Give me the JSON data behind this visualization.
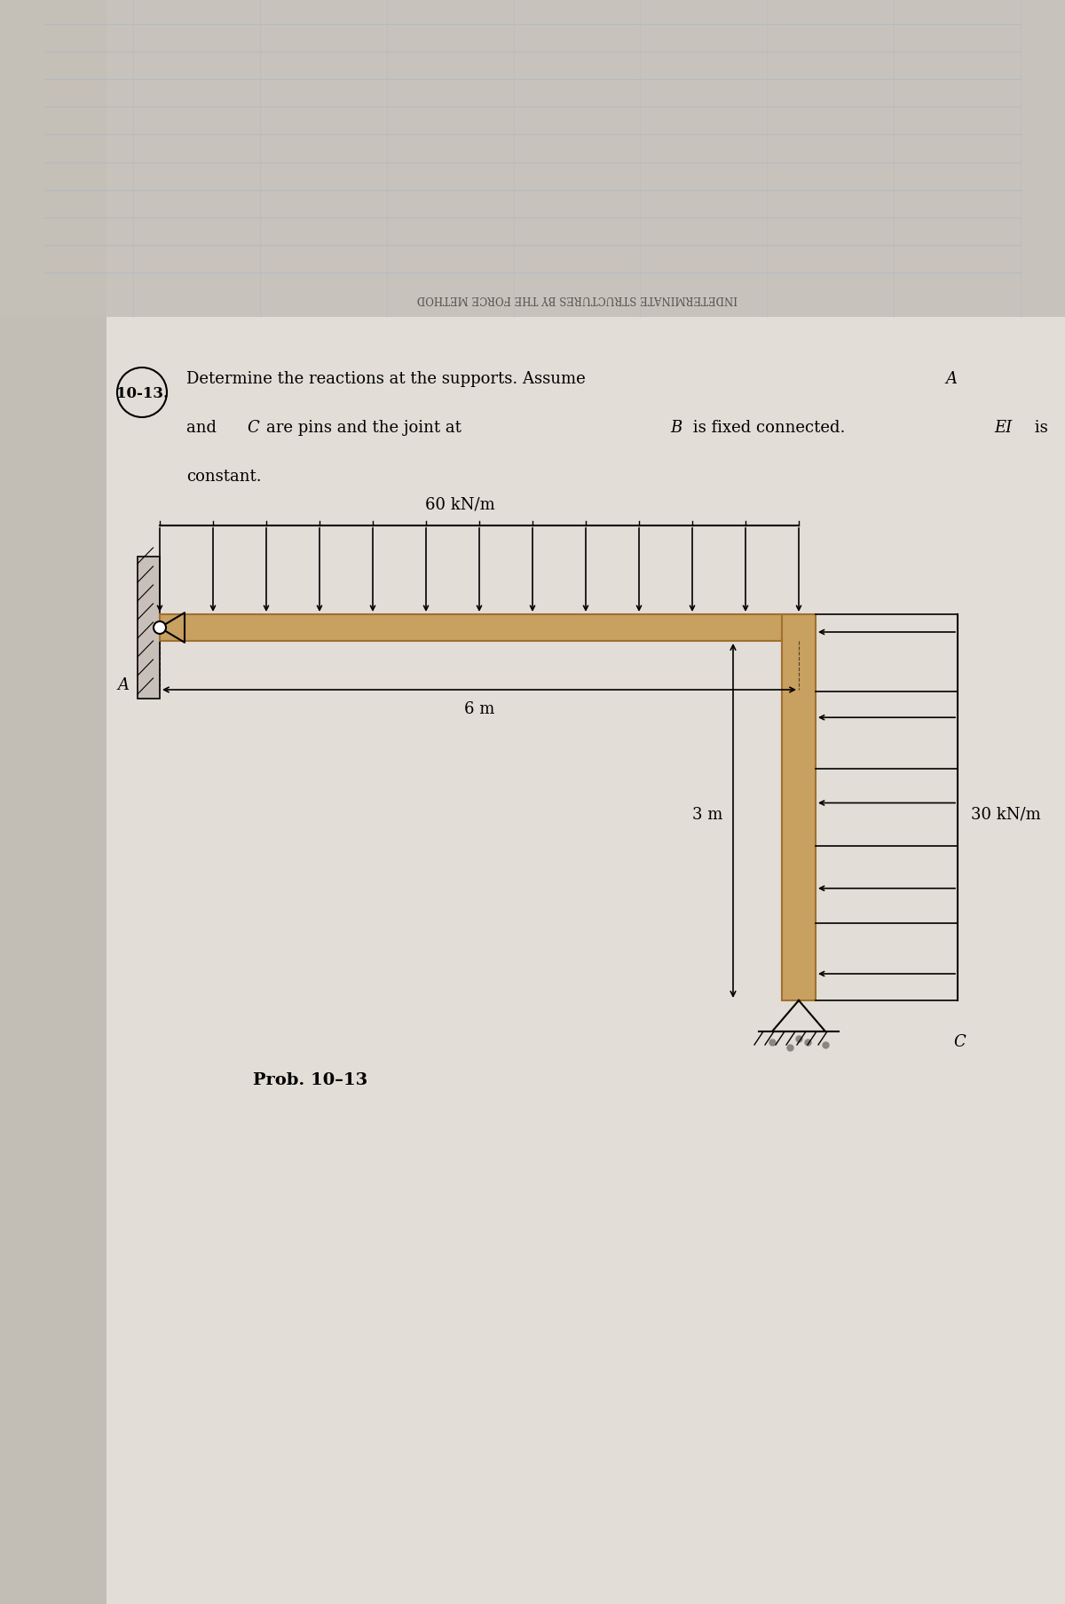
{
  "fig_bg": "#b8b0a0",
  "page_bg_left": "#c8c0b4",
  "page_bg_right": "#ddd8cc",
  "page_bg_center": "#e8e4dc",
  "label_60": "60 kN/m",
  "label_30": "30 kN/m",
  "label_6m": "6 m",
  "label_3m": "3 m",
  "label_A": "A",
  "label_C": "C",
  "problem_label": "Prob. 10–13",
  "problem_number": "10-13.",
  "problem_text_line1": "Determine the reactions at the supports. Assume ",
  "problem_text_italic1": "A",
  "problem_text_line2": "and ",
  "problem_text_italic2": "C",
  "problem_text_line2b": "are pins and the joint at ",
  "problem_text_italic3": "B",
  "problem_text_line2c": " is fixed connected. ",
  "problem_text_italic4": "EI",
  "problem_text_line2d": " is",
  "problem_text_line3": "constant.",
  "header_text": "INDETERMINATE STRUCTURES BY THE FORCE METHOD",
  "beam_color": "#c8a060",
  "beam_edge": "#a07030",
  "figsize": [
    12,
    18.08
  ],
  "n_beam_arrows": 13,
  "n_col_arrows": 5
}
